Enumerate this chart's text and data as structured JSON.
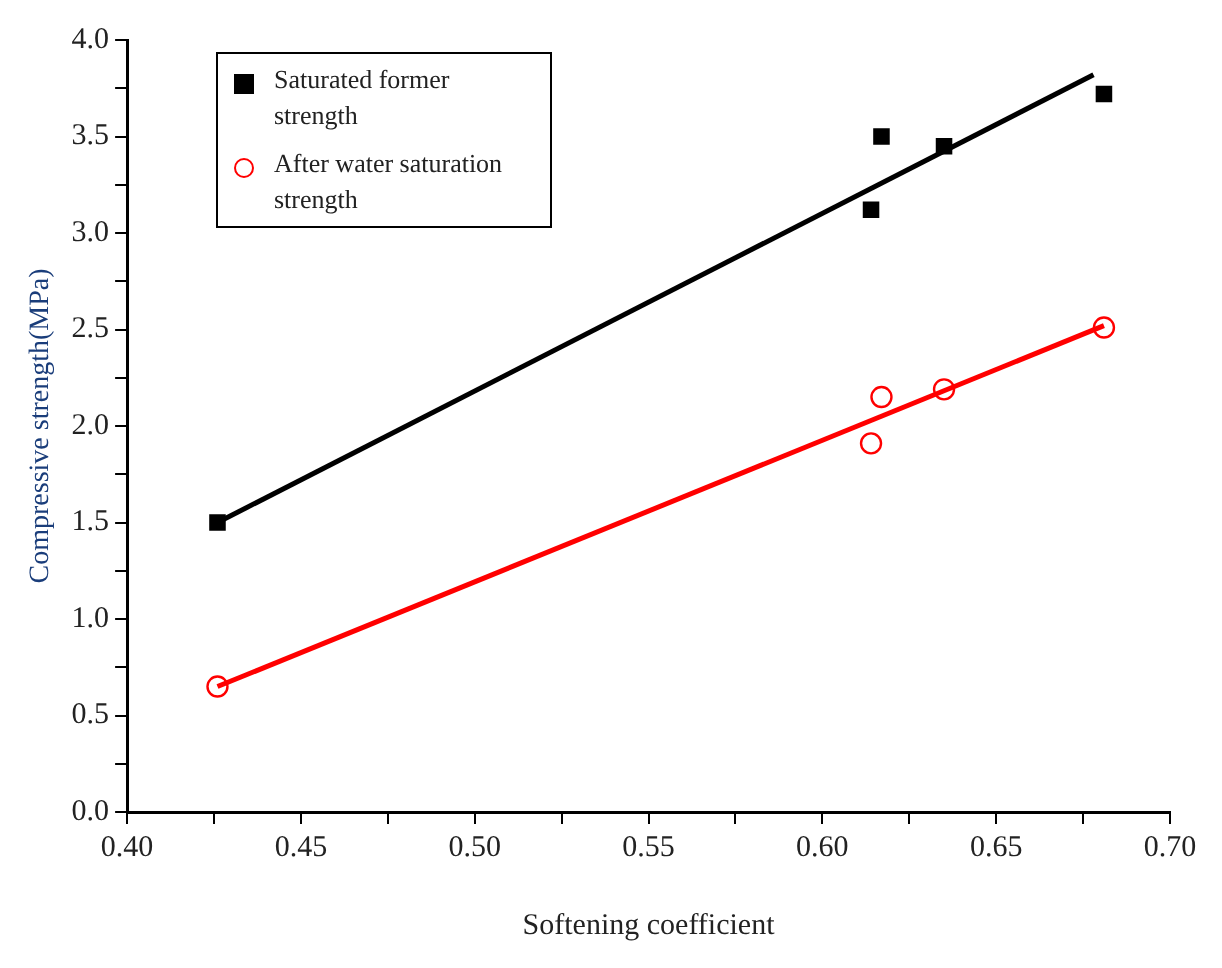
{
  "chart_data": {
    "type": "scatter",
    "xlabel": "Softening coefficient",
    "ylabel": "Compressive strength(MPa)",
    "xlim": [
      0.4,
      0.7
    ],
    "xticks": [
      {
        "value": 0.4,
        "label": "0.40"
      },
      {
        "value": 0.425,
        "label": null
      },
      {
        "value": 0.45,
        "label": "0.45"
      },
      {
        "value": 0.475,
        "label": null
      },
      {
        "value": 0.5,
        "label": "0.50"
      },
      {
        "value": 0.525,
        "label": null
      },
      {
        "value": 0.55,
        "label": "0.55"
      },
      {
        "value": 0.575,
        "label": null
      },
      {
        "value": 0.6,
        "label": "0.60"
      },
      {
        "value": 0.625,
        "label": null
      },
      {
        "value": 0.65,
        "label": "0.65"
      },
      {
        "value": 0.675,
        "label": null
      },
      {
        "value": 0.7,
        "label": "0.70"
      }
    ],
    "ylim": [
      0,
      4
    ],
    "yticks": [
      {
        "value": 0,
        "label": "0.0"
      },
      {
        "value": 0.25,
        "label": null
      },
      {
        "value": 0.5,
        "label": "0.5"
      },
      {
        "value": 0.75,
        "label": null
      },
      {
        "value": 1,
        "label": "1.0"
      },
      {
        "value": 1.25,
        "label": null
      },
      {
        "value": 1.5,
        "label": "1.5"
      },
      {
        "value": 1.75,
        "label": null
      },
      {
        "value": 2,
        "label": "2.0"
      },
      {
        "value": 2.25,
        "label": null
      },
      {
        "value": 2.5,
        "label": "2.5"
      },
      {
        "value": 2.75,
        "label": null
      },
      {
        "value": 3,
        "label": "3.0"
      },
      {
        "value": 3.25,
        "label": null
      },
      {
        "value": 3.5,
        "label": "3.5"
      },
      {
        "value": 3.75,
        "label": null
      },
      {
        "value": 4,
        "label": "4.0"
      }
    ],
    "grid": false,
    "legend": "top left",
    "series": [
      {
        "name": "Saturated former strength",
        "color": "#000000",
        "marker": "square",
        "x": [
          0.426,
          0.614,
          0.617,
          0.635,
          0.681
        ],
        "values": [
          1.5,
          3.12,
          3.5,
          3.45,
          3.72
        ]
      },
      {
        "name": "After water saturation strength",
        "color": "#ff0000",
        "marker": "circle",
        "x": [
          0.426,
          0.614,
          0.617,
          0.635,
          0.681
        ],
        "values": [
          0.65,
          1.91,
          2.15,
          2.19,
          2.51
        ]
      },
      {
        "type": "line",
        "color": "#000000",
        "marker": "none",
        "x": [
          0.426,
          0.678
        ],
        "values": [
          1.5,
          3.82
        ]
      },
      {
        "type": "line",
        "color": "#ff0000",
        "marker": "none",
        "x": [
          0.426,
          0.681
        ],
        "values": [
          0.65,
          2.52
        ]
      }
    ]
  }
}
